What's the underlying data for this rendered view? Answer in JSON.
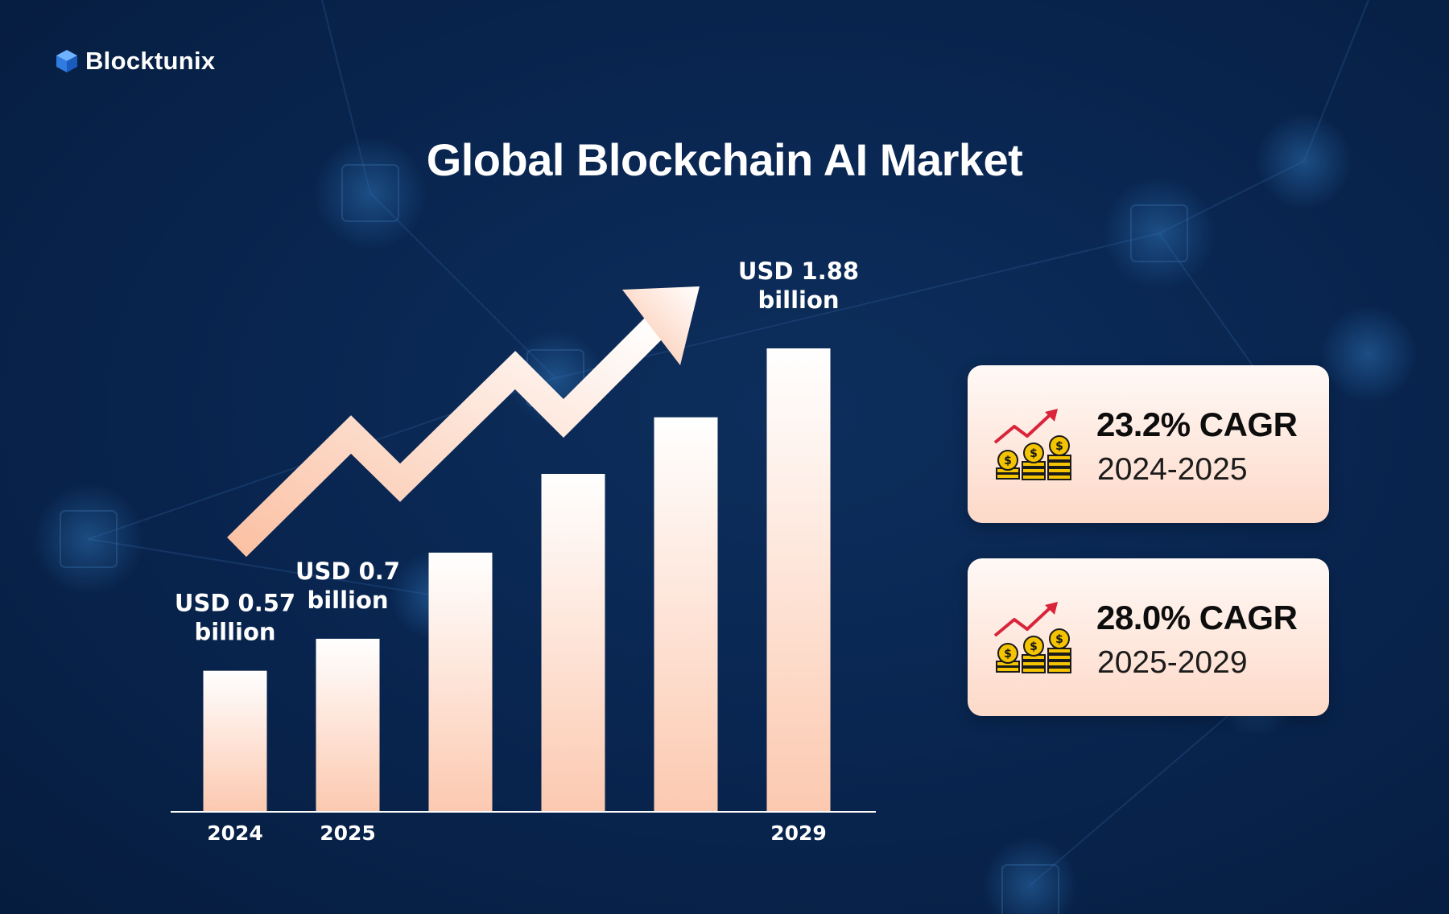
{
  "brand": {
    "name": "Blocktunix",
    "icon": "cube-icon"
  },
  "title": "Global Blockchain AI Market",
  "chart_data": {
    "type": "bar",
    "title": "Global Blockchain AI Market",
    "categories": [
      "2024",
      "2025",
      "",
      "",
      "",
      "2029"
    ],
    "values": [
      0.57,
      0.7,
      1.05,
      1.37,
      1.6,
      1.88
    ],
    "unit": "USD billion",
    "data_labels": [
      [
        "USD 0.57",
        "billion"
      ],
      [
        "USD 0.7",
        "billion"
      ],
      null,
      null,
      null,
      [
        "USD 1.88",
        "billion"
      ]
    ],
    "trend_arrow": true,
    "bar_gradient": [
      "#ffffff",
      "#fcc9b0"
    ],
    "xlabel": "",
    "ylabel": "",
    "grid": false
  },
  "cards": [
    {
      "value": "23.2% CAGR",
      "period": "2024-2025",
      "icon": "coins-growth-icon"
    },
    {
      "value": "28.0% CAGR",
      "period": "2025-2029",
      "icon": "coins-growth-icon"
    }
  ],
  "colors": {
    "background": "#092651",
    "bar_top": "#ffffff",
    "bar_bottom": "#fcc9b0",
    "card_bottom": "#fdd9c8",
    "arrow_red": "#d9243a",
    "coin_gold": "#f5c400"
  }
}
